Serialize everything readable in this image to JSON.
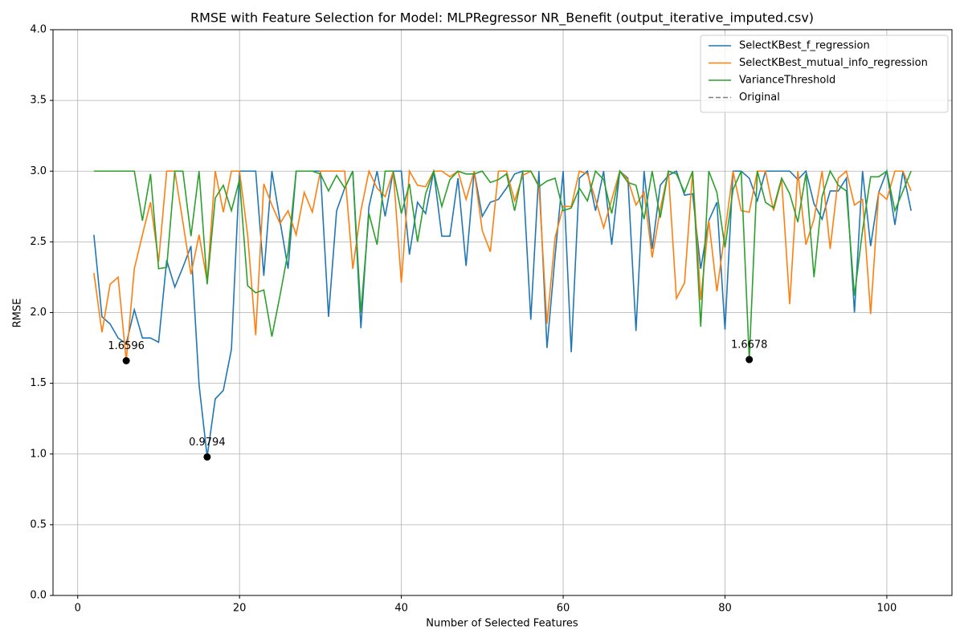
{
  "chart_data": {
    "type": "line",
    "title": "RMSE with Feature Selection for Model: MLPRegressor NR_Benefit (output_iterative_imputed.csv)",
    "xlabel": "Number of Selected Features",
    "ylabel": "RMSE",
    "x": [
      2,
      3,
      4,
      5,
      6,
      7,
      8,
      9,
      10,
      11,
      12,
      13,
      14,
      15,
      16,
      17,
      18,
      19,
      20,
      21,
      22,
      23,
      24,
      25,
      26,
      27,
      28,
      29,
      30,
      31,
      32,
      33,
      34,
      35,
      36,
      37,
      38,
      39,
      40,
      41,
      42,
      43,
      44,
      45,
      46,
      47,
      48,
      49,
      50,
      51,
      52,
      53,
      54,
      55,
      56,
      57,
      58,
      59,
      60,
      61,
      62,
      63,
      64,
      65,
      66,
      67,
      68,
      69,
      70,
      71,
      72,
      73,
      74,
      75,
      76,
      77,
      78,
      79,
      80,
      81,
      82,
      83,
      84,
      85,
      86,
      87,
      88,
      89,
      90,
      91,
      92,
      93,
      94,
      95,
      96,
      97,
      98,
      99,
      100,
      101,
      102,
      103
    ],
    "series": [
      {
        "name": "SelectKBest_f_regression",
        "color": "#1f77b4",
        "values": [
          2.55,
          1.97,
          1.92,
          1.82,
          1.78,
          2.02,
          1.82,
          1.82,
          1.79,
          2.37,
          2.18,
          2.32,
          2.47,
          1.49,
          0.9794,
          1.39,
          1.45,
          1.74,
          3.0,
          3.0,
          3.0,
          2.26,
          3.0,
          2.65,
          2.31,
          3.0,
          3.0,
          3.0,
          3.0,
          1.97,
          2.72,
          2.88,
          3.0,
          1.89,
          2.75,
          3.0,
          2.68,
          3.0,
          3.0,
          2.41,
          2.78,
          2.7,
          3.0,
          2.54,
          2.54,
          2.95,
          2.33,
          3.0,
          2.68,
          2.78,
          2.8,
          2.88,
          2.98,
          3.0,
          1.95,
          3.0,
          1.75,
          2.4,
          3.0,
          1.72,
          2.95,
          3.0,
          2.72,
          3.0,
          2.48,
          3.0,
          2.95,
          1.87,
          3.0,
          2.45,
          2.9,
          2.97,
          3.0,
          2.83,
          2.84,
          2.31,
          2.65,
          2.78,
          1.88,
          3.0,
          3.0,
          2.95,
          2.79,
          3.0,
          3.0,
          3.0,
          3.0,
          2.94,
          3.0,
          2.77,
          2.66,
          2.86,
          2.86,
          2.95,
          2.0,
          3.0,
          2.47,
          2.85,
          3.0,
          2.62,
          3.0,
          2.72
        ]
      },
      {
        "name": "SelectKBest_mutual_info_regression",
        "color": "#ff7f0e",
        "values": [
          2.28,
          1.86,
          2.2,
          2.25,
          1.6596,
          2.31,
          2.55,
          2.78,
          2.36,
          3.0,
          3.0,
          2.64,
          2.27,
          2.55,
          2.22,
          3.0,
          2.71,
          3.0,
          3.0,
          2.55,
          1.84,
          2.91,
          2.76,
          2.63,
          2.72,
          2.55,
          2.85,
          2.71,
          3.0,
          3.0,
          3.0,
          3.0,
          2.31,
          2.72,
          3.0,
          2.88,
          2.82,
          3.0,
          2.21,
          3.0,
          2.9,
          2.89,
          3.0,
          3.0,
          2.96,
          3.0,
          2.8,
          3.0,
          2.58,
          2.43,
          3.0,
          3.0,
          2.79,
          2.97,
          3.0,
          2.9,
          1.92,
          2.53,
          2.75,
          2.75,
          3.0,
          2.98,
          2.8,
          2.6,
          2.8,
          3.0,
          2.94,
          2.76,
          2.85,
          2.39,
          2.73,
          3.0,
          2.1,
          2.21,
          3.0,
          2.09,
          2.65,
          2.15,
          2.57,
          3.0,
          2.72,
          2.71,
          3.0,
          3.0,
          2.72,
          2.94,
          2.06,
          3.0,
          2.48,
          2.66,
          3.0,
          2.45,
          2.95,
          3.0,
          2.76,
          2.8,
          1.99,
          2.85,
          2.8,
          3.0,
          3.0,
          2.86
        ]
      },
      {
        "name": "VarianceThreshold",
        "color": "#2ca02c",
        "values": [
          3.0,
          3.0,
          3.0,
          3.0,
          3.0,
          3.0,
          2.65,
          2.98,
          2.31,
          2.32,
          3.0,
          3.0,
          2.54,
          3.0,
          2.2,
          2.81,
          2.9,
          2.72,
          2.94,
          2.19,
          2.14,
          2.16,
          1.83,
          2.12,
          2.43,
          3.0,
          3.0,
          3.0,
          2.98,
          2.86,
          2.97,
          2.88,
          3.0,
          2.0,
          2.7,
          2.48,
          3.0,
          3.0,
          2.7,
          2.91,
          2.5,
          2.84,
          3.0,
          2.75,
          2.94,
          3.0,
          2.98,
          2.98,
          3.0,
          2.92,
          2.94,
          2.98,
          2.72,
          3.0,
          3.0,
          2.89,
          2.93,
          2.95,
          2.72,
          2.74,
          2.88,
          2.79,
          3.0,
          2.94,
          2.7,
          3.0,
          2.92,
          2.9,
          2.66,
          3.0,
          2.67,
          3.0,
          2.98,
          2.85,
          3.0,
          1.9,
          3.0,
          2.85,
          2.46,
          2.87,
          3.0,
          1.6678,
          3.0,
          2.78,
          2.74,
          2.95,
          2.84,
          2.64,
          2.98,
          2.25,
          2.82,
          3.0,
          2.9,
          2.86,
          2.12,
          2.58,
          2.96,
          2.96,
          3.0,
          2.72,
          2.86,
          3.0
        ]
      },
      {
        "name": "Original",
        "color": "#808080",
        "dashed": true,
        "values": [
          null,
          null,
          null,
          null,
          null,
          null,
          null,
          null,
          null,
          null,
          null,
          null,
          null,
          null,
          null,
          null,
          null,
          null,
          null,
          null,
          null,
          null,
          null,
          null,
          null,
          null,
          null,
          null,
          null,
          null,
          null,
          null,
          null,
          null,
          null,
          null,
          null,
          null,
          null,
          null,
          null,
          null,
          null,
          null,
          null,
          null,
          null,
          null,
          null,
          null,
          null,
          null,
          null,
          null,
          null,
          null,
          null,
          null,
          null,
          null,
          null,
          null,
          null,
          null,
          null,
          null,
          null,
          null,
          null,
          null,
          null,
          null,
          null,
          null,
          null,
          null,
          null,
          null,
          null,
          null,
          null,
          null,
          null,
          null,
          null,
          null,
          null,
          null,
          null,
          null,
          null,
          null,
          null,
          null,
          null,
          null,
          null,
          null,
          null,
          null,
          null,
          null
        ]
      }
    ],
    "annotations": [
      {
        "x": 6,
        "y": 1.6596,
        "label": "1.6596"
      },
      {
        "x": 16,
        "y": 0.9794,
        "label": "0.9794"
      },
      {
        "x": 83,
        "y": 1.6678,
        "label": "1.6678"
      }
    ],
    "xlim": [
      -3.05,
      108.05
    ],
    "xticks": [
      0,
      20,
      40,
      60,
      80,
      100
    ],
    "ylim": [
      0,
      4
    ],
    "yticks": [
      {
        "value": 0,
        "label": "0.0"
      },
      0.5,
      {
        "value": 1,
        "label": "1.0"
      },
      1.5,
      {
        "value": 2,
        "label": "2.0"
      },
      2.5,
      {
        "value": 3,
        "label": "3.0"
      },
      3.5,
      {
        "value": 4,
        "label": "4.0"
      }
    ],
    "grid": true,
    "legend": "upper right"
  }
}
